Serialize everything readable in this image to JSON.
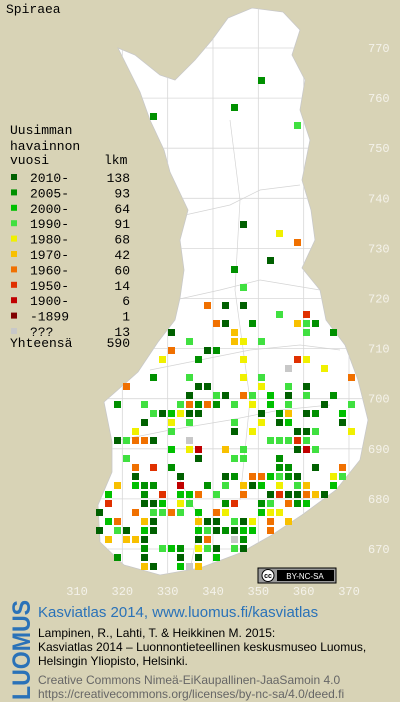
{
  "title": "Spiraea",
  "legend": {
    "heading": [
      "Uusimman",
      "havainnon",
      "vuosi"
    ],
    "count_heading": "lkm",
    "items": [
      {
        "label": "2010-",
        "count": 138,
        "color": "#006000"
      },
      {
        "label": "2005-",
        "count": 93,
        "color": "#009000"
      },
      {
        "label": "2000-",
        "count": 64,
        "color": "#00c000"
      },
      {
        "label": "1990-",
        "count": 91,
        "color": "#40e040"
      },
      {
        "label": "1980-",
        "count": 68,
        "color": "#f0f000"
      },
      {
        "label": "1970-",
        "count": 42,
        "color": "#f8c000"
      },
      {
        "label": "1960-",
        "count": 60,
        "color": "#f07000"
      },
      {
        "label": "1950-",
        "count": 14,
        "color": "#e03000"
      },
      {
        "label": "1900-",
        "count": 6,
        "color": "#c00000"
      },
      {
        "label": "-1899",
        "count": 1,
        "color": "#800000"
      },
      {
        "label": "???",
        "count": 13,
        "color": "#c8c8c8"
      }
    ],
    "total_label": "Yhteensä",
    "total": 590
  },
  "map": {
    "xticks": [
      310,
      320,
      330,
      340,
      350,
      360,
      370
    ],
    "yticks": [
      670,
      680,
      690,
      700,
      710,
      720,
      730,
      740,
      750,
      760,
      770
    ]
  },
  "badge": {
    "cc": "cc",
    "terms": "BY-NC-SA"
  },
  "footer": {
    "logo": "LUOMUS",
    "link": "Kasviatlas 2014, www.luomus.fi/kasviatlas",
    "citation": [
      "Lampinen, R., Lahti, T. & Heikkinen M. 2015:",
      "Kasviatlas 2014 – Luonnontieteellinen keskusmuseo Luomus,",
      "Helsingin Yliopisto, Helsinki."
    ],
    "license": [
      "Creative Commons Nimeä-EiKaupallinen-JaaSamoin 4.0",
      "https://creativecommons.org/licenses/by-nc-sa/4.0/deed.fi"
    ]
  }
}
